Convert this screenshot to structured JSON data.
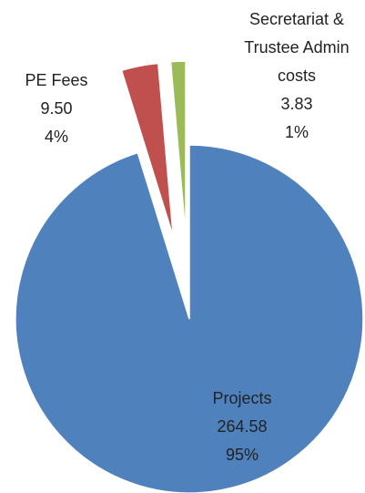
{
  "chart_data": {
    "type": "pie",
    "categories": [
      "Projects",
      "PE Fees",
      "Secretariat & Trustee Admin costs"
    ],
    "values": [
      264.58,
      9.5,
      3.83
    ],
    "value_labels": [
      "264.58",
      "9.50",
      "3.83"
    ],
    "percent_labels": [
      "95%",
      "4%",
      "1%"
    ],
    "colors": [
      "#4f81bd",
      "#c0504d",
      "#9bbb59"
    ]
  }
}
